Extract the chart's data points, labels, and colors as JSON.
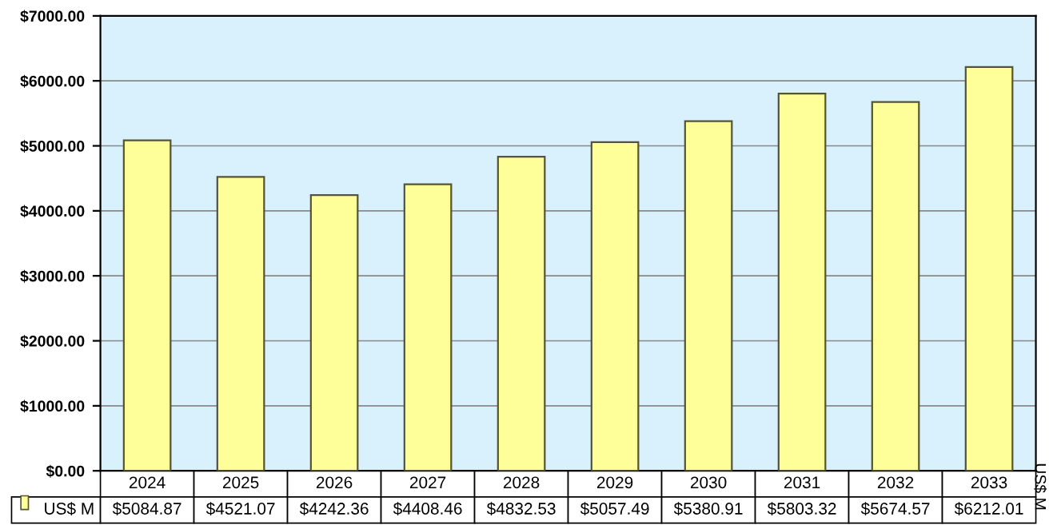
{
  "chart_data": {
    "type": "bar",
    "y2label": "US$ M",
    "categories": [
      "2024",
      "2025",
      "2026",
      "2027",
      "2028",
      "2029",
      "2030",
      "2031",
      "2032",
      "2033"
    ],
    "series": [
      {
        "name": "US$ M",
        "color": "#ffff99",
        "values": [
          5084.87,
          4521.07,
          4242.36,
          4408.46,
          4832.53,
          5057.49,
          5380.91,
          5803.32,
          5674.57,
          6212.01
        ],
        "value_labels": [
          "$5084.87",
          "$4521.07",
          "$4242.36",
          "$4408.46",
          "$4832.53",
          "$5057.49",
          "$5380.91",
          "$5803.32",
          "$5674.57",
          "$6212.01"
        ]
      }
    ],
    "ylim": [
      0,
      7000
    ],
    "yticks": [
      {
        "value": 0,
        "label": "$0.00"
      },
      {
        "value": 1000,
        "label": "$1000.00"
      },
      {
        "value": 2000,
        "label": "$2000.00"
      },
      {
        "value": 3000,
        "label": "$3000.00"
      },
      {
        "value": 4000,
        "label": "$4000.00"
      },
      {
        "value": 5000,
        "label": "$5000.00"
      },
      {
        "value": 6000,
        "label": "$6000.00"
      },
      {
        "value": 7000,
        "label": "$7000.00"
      }
    ],
    "grid": "y"
  }
}
